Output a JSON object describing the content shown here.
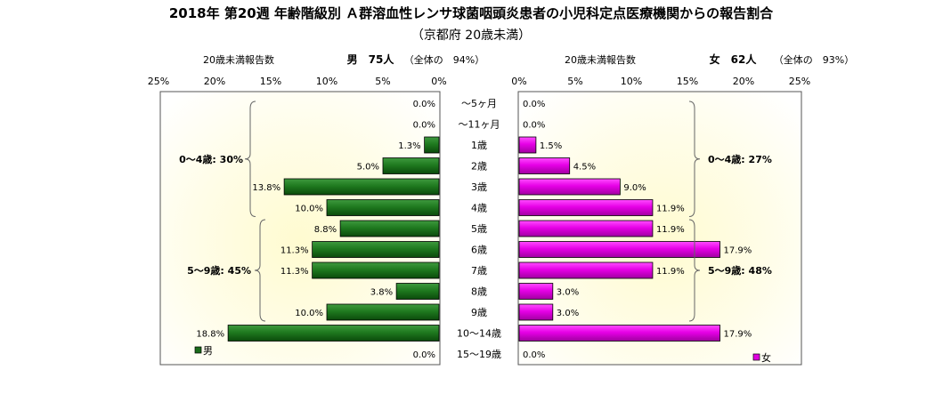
{
  "chart_data": {
    "type": "bar",
    "title": "2018年 第20週 年齢階級別 Ａ群溶血性レンサ球菌咽頭炎患者の小児科定点医療機関からの報告割合",
    "subtitle": "（京都府 20歳未満）",
    "categories": [
      "～5ヶ月",
      "～11ヶ月",
      "1歳",
      "2歳",
      "3歳",
      "4歳",
      "5歳",
      "6歳",
      "7歳",
      "8歳",
      "9歳",
      "10～14歳",
      "15～19歳"
    ],
    "axis_ticks": [
      "25%",
      "20%",
      "15%",
      "10%",
      "5%",
      "0%"
    ],
    "axis_ticks_right": [
      "0%",
      "5%",
      "10%",
      "15%",
      "20%",
      "25%"
    ],
    "xlim": [
      0,
      25
    ],
    "series": [
      {
        "name": "男",
        "side": "left",
        "color": "#1a6b1a",
        "header_caption": "20歳未満報告数",
        "header_count": "男　75人",
        "header_share": "（全体の　94%）",
        "values": [
          0.0,
          0.0,
          1.3,
          5.0,
          13.8,
          10.0,
          8.8,
          11.3,
          11.3,
          3.8,
          10.0,
          18.8,
          0.0
        ],
        "labels": [
          "0.0%",
          "0.0%",
          "1.3%",
          "5.0%",
          "13.8%",
          "10.0%",
          "8.8%",
          "11.3%",
          "11.3%",
          "3.8%",
          "10.0%",
          "18.8%",
          "0.0%"
        ],
        "group_labels": [
          "0～4歳: 30%",
          "5～9歳: 45%"
        ]
      },
      {
        "name": "女",
        "side": "right",
        "color": "#e000e0",
        "header_caption": "20歳未満報告数",
        "header_count": "女　62人",
        "header_share": "（全体の　93%）",
        "values": [
          0.0,
          0.0,
          1.5,
          4.5,
          9.0,
          11.9,
          11.9,
          17.9,
          11.9,
          3.0,
          3.0,
          17.9,
          0.0
        ],
        "labels": [
          "0.0%",
          "0.0%",
          "1.5%",
          "4.5%",
          "9.0%",
          "11.9%",
          "11.9%",
          "17.9%",
          "11.9%",
          "3.0%",
          "3.0%",
          "17.9%",
          "0.0%"
        ],
        "group_labels": [
          "0～4歳: 27%",
          "5～9歳: 48%"
        ]
      }
    ]
  }
}
